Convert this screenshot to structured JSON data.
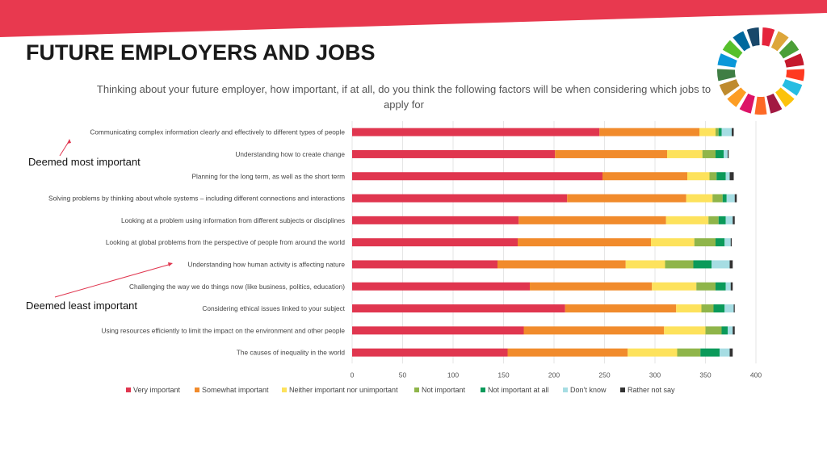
{
  "header": {
    "title": "FUTURE EMPLOYERS AND JOBS",
    "subtitle": "Thinking about your future employer, how important, if at all, do you think the following factors will be when considering which jobs to apply for"
  },
  "callouts": {
    "top": "Deemed most important",
    "bottom": "Deemed least important"
  },
  "colors": {
    "banner": "#e8394f",
    "sdg_wheel": [
      "#e5243b",
      "#dda63a",
      "#4c9f38",
      "#c5192d",
      "#ff3a21",
      "#26bde2",
      "#fcc30b",
      "#a21942",
      "#fd6925",
      "#dd1367",
      "#fd9d24",
      "#bf8b2e",
      "#3f7e44",
      "#0a97d9",
      "#56c02b",
      "#00689d",
      "#19486a"
    ]
  },
  "chart_data": {
    "type": "bar",
    "orientation": "horizontal",
    "stacked": true,
    "categories": [
      "Communicating complex information clearly and effectively to different types of people",
      "Understanding how to create change",
      "Planning for the long term, as well as the short term",
      "Solving problems by thinking about whole systems – including different connections and interactions",
      "Looking at a problem using information from different subjects or disciplines",
      "Looking at global problems from the perspective of people from around the world",
      "Understanding how human activity is affecting nature",
      "Challenging the way we do things now (like business, politics, education)",
      "Considering ethical issues linked to your subject",
      "Using resources efficiently to limit the impact on the environment and other people",
      "The causes of inequality in the world"
    ],
    "series": [
      {
        "name": "Very important",
        "color": "#e0364f",
        "values": [
          245,
          201,
          248,
          213,
          165,
          164,
          144,
          176,
          211,
          170,
          154
        ]
      },
      {
        "name": "Somewhat important",
        "color": "#f18b2c",
        "values": [
          99,
          111,
          84,
          118,
          146,
          132,
          127,
          121,
          110,
          139,
          119
        ]
      },
      {
        "name": "Neither important nor unimportant",
        "color": "#fde25c",
        "values": [
          16,
          35,
          22,
          26,
          42,
          43,
          39,
          44,
          25,
          41,
          49
        ]
      },
      {
        "name": "Not important",
        "color": "#8fb54a",
        "values": [
          3,
          13,
          7,
          10,
          10,
          21,
          28,
          19,
          12,
          16,
          23
        ]
      },
      {
        "name": "Not important at all",
        "color": "#0b9a5a",
        "values": [
          3,
          8,
          9,
          4,
          7,
          9,
          18,
          10,
          11,
          6,
          19
        ]
      },
      {
        "name": "Don’t know",
        "color": "#a6dde3",
        "values": [
          10,
          4,
          4,
          8,
          7,
          6,
          18,
          5,
          9,
          5,
          10
        ]
      },
      {
        "name": "Rather not say",
        "color": "#333333",
        "values": [
          2,
          1,
          4,
          2,
          2,
          1,
          3,
          2,
          1,
          2,
          3
        ]
      }
    ],
    "xlim": [
      0,
      400
    ],
    "xticks": [
      "0",
      "50",
      "100",
      "150",
      "200",
      "250",
      "300",
      "350",
      "400"
    ],
    "grid": true,
    "legend_position": "bottom"
  }
}
